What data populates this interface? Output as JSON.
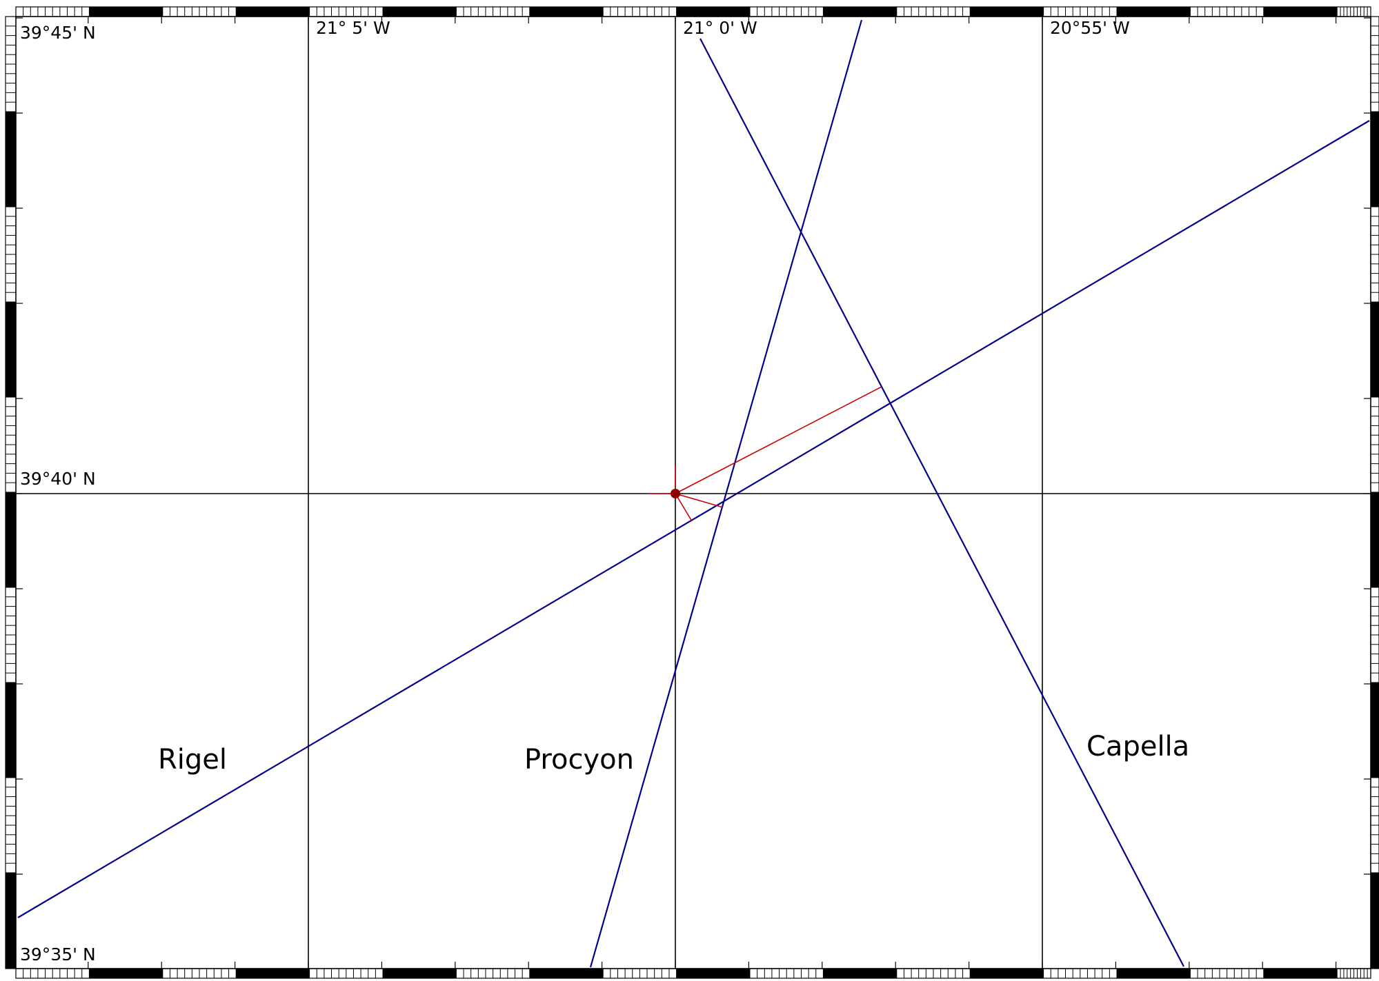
{
  "grid": {
    "latitude_labels": [
      "39°45' N",
      "39°40' N",
      "39°35' N"
    ],
    "longitude_labels": [
      "21° 5' W",
      "21° 0' W",
      "20°55' W"
    ]
  },
  "lines_of_position": [
    {
      "label": "Rigel"
    },
    {
      "label": "Procyon"
    },
    {
      "label": "Capella"
    }
  ],
  "colors": {
    "grid": "#000000",
    "lop": "#00008b",
    "fix": "#cc0000",
    "fix_marker": "#8b0000"
  }
}
